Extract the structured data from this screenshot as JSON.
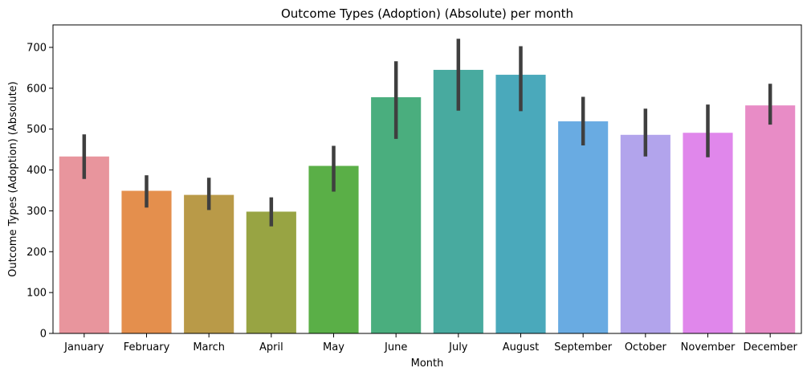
{
  "chart_data": {
    "type": "bar",
    "title": "Outcome Types (Adoption) (Absolute) per month",
    "xlabel": "Month",
    "ylabel": "Outcome Types (Adoption) (Absolute)",
    "categories": [
      "January",
      "February",
      "March",
      "April",
      "May",
      "June",
      "July",
      "August",
      "September",
      "October",
      "November",
      "December"
    ],
    "values": [
      433,
      349,
      339,
      298,
      410,
      578,
      645,
      633,
      519,
      486,
      491,
      558
    ],
    "error_low": [
      378,
      308,
      302,
      262,
      347,
      476,
      545,
      544,
      460,
      433,
      431,
      511
    ],
    "error_high": [
      487,
      387,
      381,
      333,
      459,
      666,
      721,
      703,
      579,
      550,
      560,
      611
    ],
    "bar_colors": [
      "#e8959d",
      "#e48f4d",
      "#b99a48",
      "#98a443",
      "#5aaf47",
      "#4aae7e",
      "#48aa9f",
      "#4aa9bb",
      "#69abe2",
      "#b2a4ec",
      "#e087eb",
      "#e88cc6"
    ],
    "error_bar_color": "#3f3f3f",
    "yticks": [
      0,
      100,
      200,
      300,
      400,
      500,
      600,
      700
    ],
    "ylim": [
      0,
      755
    ],
    "grid": false,
    "legend": "none"
  }
}
